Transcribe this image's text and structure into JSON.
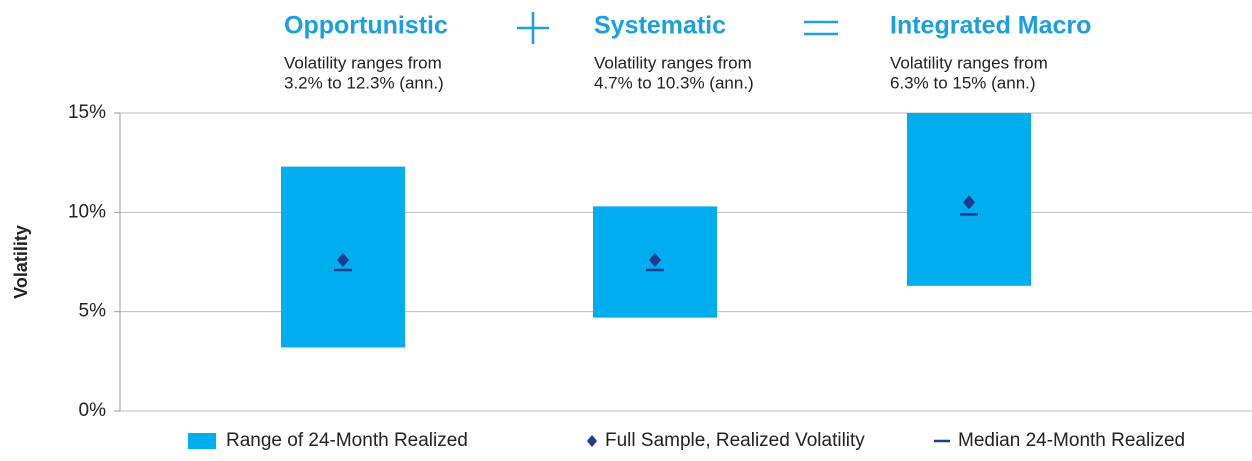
{
  "chart_data": {
    "type": "range_bar",
    "categories": [
      "Opportunistic",
      "Systematic",
      "Integrated Macro"
    ],
    "annotations": [
      [
        "Volatility ranges from",
        "3.2%  to 12.3% (ann.)"
      ],
      [
        "Volatility ranges from",
        "4.7%  to 10.3% (ann.)"
      ],
      [
        "Volatility ranges from",
        "6.3%  to 15% (ann.)"
      ]
    ],
    "y_label": "Volatility",
    "ylim": [
      0,
      15
    ],
    "yticks": [
      {
        "value": 0,
        "label": "0%"
      },
      {
        "value": 5,
        "label": "5%"
      },
      {
        "value": 10,
        "label": "10%"
      },
      {
        "value": 15,
        "label": "15%"
      }
    ],
    "grid": true,
    "range": {
      "name": "Range of 24-Month Realized",
      "color": "#00aeef",
      "low": [
        3.2,
        4.7,
        6.3
      ],
      "high": [
        12.3,
        10.3,
        15
      ]
    },
    "series": [
      {
        "name": "Full Sample, Realized Volatility",
        "marker": "diamond",
        "color": "#1f3a8a",
        "values": [
          7.6,
          7.6,
          10.5
        ]
      },
      {
        "name": "Median 24-Month Realized",
        "marker": "dash",
        "color": "#1f3a8a",
        "values": [
          7.1,
          7.1,
          9.9
        ]
      }
    ],
    "title_color": "#1a9fe0"
  }
}
